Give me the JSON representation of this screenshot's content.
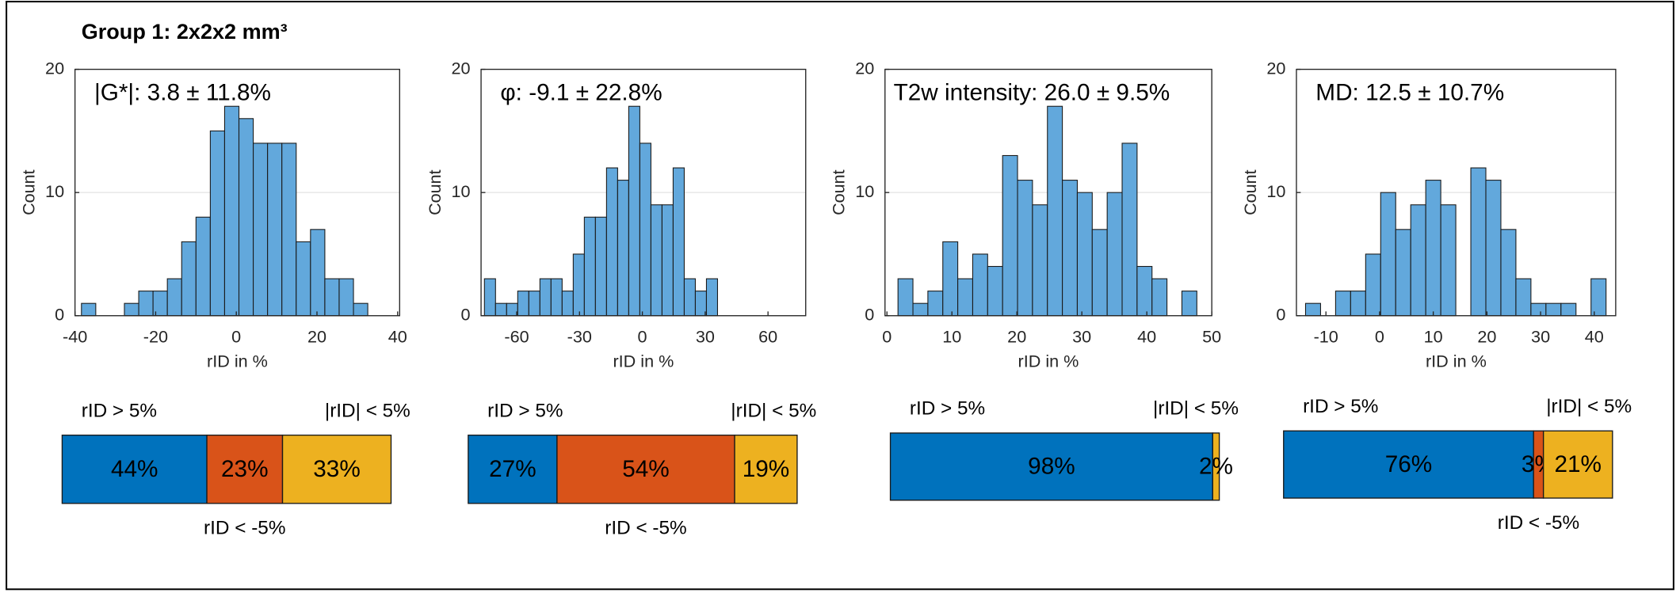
{
  "title": "Group 1: 2x2x2 mm³",
  "chart_data": [
    {
      "type": "histogram",
      "annotation": "|G*|: 3.8 ± 11.8%",
      "xlabel": "rID in %",
      "ylabel": "Count",
      "color": "#62a8dc",
      "grid": true,
      "bins": [
        -38.4,
        -34.85,
        -31.3,
        -27.75,
        -24.2,
        -20.65,
        -17.1,
        -13.55,
        -10,
        -6.45,
        -2.9,
        0.65,
        4.2,
        7.75,
        11.3,
        14.85,
        18.4,
        21.95,
        25.5,
        29.05,
        32.6
      ],
      "values": [
        1,
        0,
        0,
        1,
        2,
        2,
        3,
        6,
        8,
        15,
        17,
        16,
        14,
        14,
        14,
        6,
        7,
        3,
        3,
        1
      ],
      "xlim": [
        -40,
        40.5
      ],
      "xticks": [
        -40,
        -20,
        0,
        20,
        40
      ],
      "ylim": [
        0,
        20
      ],
      "yticks": [
        0,
        10,
        20
      ]
    },
    {
      "type": "histogram",
      "annotation": "φ: -9.1 ± 22.8%",
      "xlabel": "rID in %",
      "ylabel": "Count",
      "color": "#62a8dc",
      "grid": true,
      "bins": [
        -75.4,
        -70.1,
        -64.8,
        -59.5,
        -54.2,
        -48.9,
        -43.6,
        -38.3,
        -33,
        -27.7,
        -22.4,
        -17.1,
        -11.8,
        -6.5,
        -1.2,
        4.1,
        9.4,
        14.7,
        20,
        25.3,
        30.6,
        35.9
      ],
      "values": [
        3,
        1,
        1,
        2,
        2,
        3,
        3,
        2,
        5,
        8,
        8,
        12,
        11,
        17,
        14,
        9,
        9,
        12,
        3,
        2,
        3
      ],
      "xlim": [
        -77,
        78
      ],
      "xticks": [
        -60,
        -30,
        0,
        30,
        60
      ],
      "ylim": [
        0,
        20
      ],
      "yticks": [
        0,
        10,
        20
      ]
    },
    {
      "type": "histogram",
      "annotation": "T2w intensity: 26.0 ± 9.5%",
      "xlabel": "rID in %",
      "ylabel": "Count",
      "color": "#62a8dc",
      "grid": true,
      "bins": [
        1.7,
        4,
        6.3,
        8.6,
        10.9,
        13.2,
        15.5,
        17.8,
        20.1,
        22.4,
        24.7,
        27,
        29.3,
        31.6,
        33.9,
        36.2,
        38.5,
        40.8,
        43.1,
        45.4,
        47.7
      ],
      "values": [
        3,
        1,
        2,
        6,
        3,
        5,
        4,
        13,
        11,
        9,
        17,
        11,
        10,
        7,
        10,
        14,
        4,
        3,
        0,
        2
      ],
      "xlim": [
        -0.3,
        50
      ],
      "xticks": [
        0,
        10,
        20,
        30,
        40,
        50
      ],
      "ylim": [
        0,
        20
      ],
      "yticks": [
        0,
        10,
        20
      ]
    },
    {
      "type": "histogram",
      "annotation": "MD: 12.5 ± 10.7%",
      "xlabel": "rID in %",
      "ylabel": "Count",
      "color": "#62a8dc",
      "grid": true,
      "bins": [
        -13.8,
        -11,
        -8.2,
        -5.4,
        -2.6,
        0.2,
        3,
        5.8,
        8.6,
        11.4,
        14.2,
        17,
        19.8,
        22.6,
        25.4,
        28.2,
        31,
        33.8,
        36.6,
        39.4,
        42.2
      ],
      "values": [
        1,
        0,
        2,
        2,
        5,
        10,
        7,
        9,
        11,
        9,
        0,
        12,
        11,
        7,
        3,
        1,
        1,
        1,
        0,
        3
      ],
      "xlim": [
        -15.5,
        44
      ],
      "xticks": [
        -10,
        0,
        10,
        20,
        30,
        40
      ],
      "ylim": [
        0,
        20
      ],
      "yticks": [
        0,
        10,
        20
      ]
    },
    {
      "type": "stacked-bar",
      "orientation": "horizontal",
      "xlim": [
        0,
        100
      ],
      "series": [
        {
          "name": "rID > 5%",
          "color": "#0072BD",
          "values": [
            44
          ],
          "value_labels": [
            "44%"
          ]
        },
        {
          "name": "rID < -5%",
          "color": "#D95319",
          "values": [
            23
          ],
          "value_labels": [
            "23%"
          ]
        },
        {
          "name": "|rID| < 5%",
          "color": "#EDB120",
          "values": [
            33
          ],
          "value_labels": [
            "33%"
          ]
        }
      ]
    },
    {
      "type": "stacked-bar",
      "orientation": "horizontal",
      "xlim": [
        0,
        100
      ],
      "series": [
        {
          "name": "rID > 5%",
          "color": "#0072BD",
          "values": [
            27
          ],
          "value_labels": [
            "27%"
          ]
        },
        {
          "name": "rID < -5%",
          "color": "#D95319",
          "values": [
            54
          ],
          "value_labels": [
            "54%"
          ]
        },
        {
          "name": "|rID| < 5%",
          "color": "#EDB120",
          "values": [
            19
          ],
          "value_labels": [
            "19%"
          ]
        }
      ]
    },
    {
      "type": "stacked-bar",
      "orientation": "horizontal",
      "xlim": [
        0,
        100
      ],
      "series": [
        {
          "name": "rID > 5%",
          "color": "#0072BD",
          "values": [
            98
          ],
          "value_labels": [
            "98%"
          ]
        },
        {
          "name": "|rID| < 5%",
          "color": "#EDB120",
          "values": [
            2
          ],
          "value_labels": [
            "2%"
          ]
        }
      ]
    },
    {
      "type": "stacked-bar",
      "orientation": "horizontal",
      "xlim": [
        0,
        100
      ],
      "series": [
        {
          "name": "rID > 5%",
          "color": "#0072BD",
          "values": [
            76
          ],
          "value_labels": [
            "76%"
          ]
        },
        {
          "name": "rID < -5%",
          "color": "#D95319",
          "values": [
            3
          ],
          "value_labels": [
            "3%"
          ]
        },
        {
          "name": "|rID| < 5%",
          "color": "#EDB120",
          "values": [
            21
          ],
          "value_labels": [
            "21%"
          ]
        }
      ]
    }
  ]
}
